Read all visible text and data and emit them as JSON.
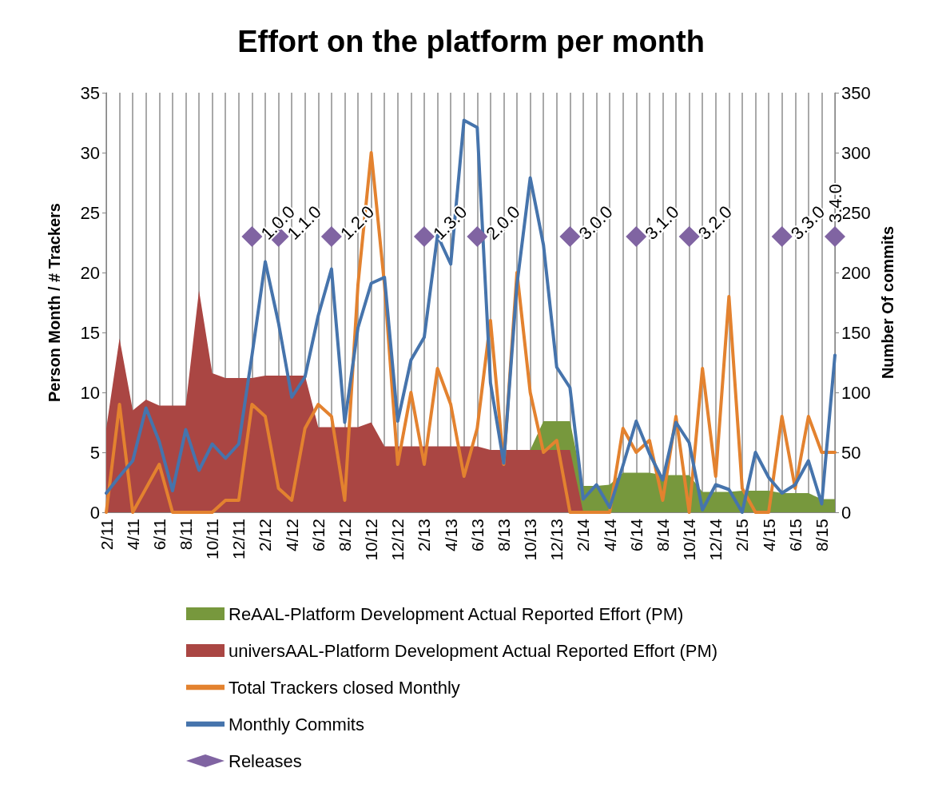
{
  "chart_data": {
    "type": "line",
    "title": "Effort on the platform per month",
    "ylabel": "Person Month / # Trackers",
    "y2label": "Number Of commits",
    "categories": [
      "2/11",
      null,
      "4/11",
      null,
      "6/11",
      null,
      "8/11",
      null,
      "10/11",
      null,
      "12/11",
      null,
      "2/12",
      null,
      "4/12",
      null,
      "6/12",
      null,
      "8/12",
      null,
      "10/12",
      null,
      "12/12",
      null,
      "2/13",
      null,
      "4/13",
      null,
      "6/13",
      null,
      "8/13",
      null,
      "10/13",
      null,
      "12/13",
      null,
      "2/14",
      null,
      "4/14",
      null,
      "6/14",
      null,
      "8/14",
      null,
      "10/14",
      null,
      "12/14",
      null,
      "2/15",
      null,
      "4/15",
      null,
      "6/15",
      null,
      "8/15",
      null
    ],
    "ylim": [
      0,
      35
    ],
    "yticks": [
      0,
      5,
      10,
      15,
      20,
      25,
      30,
      35
    ],
    "y2lim": [
      0,
      350
    ],
    "y2ticks": [
      0,
      50,
      100,
      150,
      200,
      250,
      300,
      350
    ],
    "grid": "x",
    "legend": "bottom",
    "marker": "none",
    "series": [
      {
        "name": "ReAAL-Platform Development Actual Reported Effort (PM)",
        "type": "area",
        "color": "#77983d",
        "values": [
          null,
          null,
          null,
          null,
          null,
          null,
          null,
          null,
          null,
          null,
          null,
          null,
          null,
          null,
          null,
          null,
          null,
          null,
          null,
          null,
          null,
          null,
          null,
          null,
          null,
          null,
          null,
          null,
          null,
          null,
          null,
          null,
          5.2,
          7.6,
          7.6,
          7.6,
          2.2,
          2.2,
          2.3,
          3.3,
          3.3,
          3.3,
          3.1,
          3.1,
          3.1,
          1.7,
          1.7,
          1.7,
          1.8,
          1.8,
          1.8,
          1.6,
          1.6,
          1.6,
          1.1,
          1.1
        ]
      },
      {
        "name": "universAAL-Platform Development Actual Reported Effort (PM)",
        "type": "area",
        "color": "#aa4643",
        "values": [
          7,
          14.5,
          8.5,
          9.4,
          8.9,
          8.9,
          8.9,
          18.5,
          11.6,
          11.2,
          11.2,
          11.2,
          11.4,
          11.4,
          11.4,
          11.4,
          7.1,
          7.1,
          7.1,
          7.1,
          7.5,
          5.5,
          5.5,
          5.5,
          5.5,
          5.5,
          5.5,
          5.5,
          5.5,
          5.2,
          5.2,
          5.2,
          5.2,
          5.2,
          5.2,
          5.2,
          0,
          null,
          null,
          null,
          null,
          null,
          null,
          null,
          null,
          null,
          null,
          null,
          null,
          null,
          null,
          null,
          null,
          null,
          null,
          null
        ]
      },
      {
        "name": "Total Trackers closed Monthly",
        "color": "#e3822f",
        "values": [
          0,
          9,
          0,
          2,
          4,
          0,
          0,
          0,
          0,
          1,
          1,
          9,
          8,
          2,
          1,
          7,
          9,
          8,
          1,
          19,
          30,
          19,
          4,
          10,
          4,
          12,
          9,
          3,
          7,
          16,
          4,
          20,
          10,
          5,
          6,
          0,
          0,
          0,
          0,
          7,
          5,
          6,
          1,
          8,
          0,
          12,
          3,
          18,
          2,
          0,
          0,
          8,
          2,
          8,
          5,
          5
        ]
      },
      {
        "name": "Monthly Commits",
        "axis": "y2",
        "color": "#4674ac",
        "values": [
          16,
          30,
          43,
          87,
          59,
          18,
          69,
          35,
          57,
          45,
          57,
          131,
          209,
          158,
          96,
          113,
          164,
          203,
          75,
          154,
          191,
          196,
          76,
          127,
          146,
          231,
          207,
          327,
          321,
          108,
          41,
          190,
          279,
          223,
          121,
          104,
          11,
          23,
          4,
          39,
          76,
          49,
          27,
          75,
          58,
          2,
          23,
          19,
          0,
          50,
          29,
          16,
          23,
          43,
          7,
          131
        ]
      },
      {
        "name": "Releases",
        "type": "scatter",
        "marker": "diamond",
        "color": "#8064a2",
        "values": [
          null,
          null,
          null,
          null,
          null,
          null,
          null,
          null,
          null,
          null,
          null,
          23,
          null,
          23,
          null,
          null,
          null,
          23,
          null,
          null,
          null,
          null,
          null,
          null,
          23,
          null,
          null,
          null,
          23,
          null,
          null,
          null,
          null,
          null,
          null,
          23,
          null,
          null,
          null,
          null,
          23,
          null,
          null,
          null,
          23,
          null,
          null,
          null,
          null,
          null,
          null,
          23,
          null,
          null,
          null,
          23
        ],
        "value_labels": [
          null,
          null,
          null,
          null,
          null,
          null,
          null,
          null,
          null,
          null,
          null,
          "1.0.0",
          null,
          "1.1.0",
          null,
          null,
          null,
          "1.2.0",
          null,
          null,
          null,
          null,
          null,
          null,
          "1.3.0",
          null,
          null,
          null,
          "2.0.0",
          null,
          null,
          null,
          null,
          null,
          null,
          "3.0.0",
          null,
          null,
          null,
          null,
          "3.1.0",
          null,
          null,
          null,
          "3.2.0",
          null,
          null,
          null,
          null,
          null,
          null,
          "3.3.0",
          null,
          null,
          null,
          "3.4.0"
        ]
      }
    ]
  }
}
